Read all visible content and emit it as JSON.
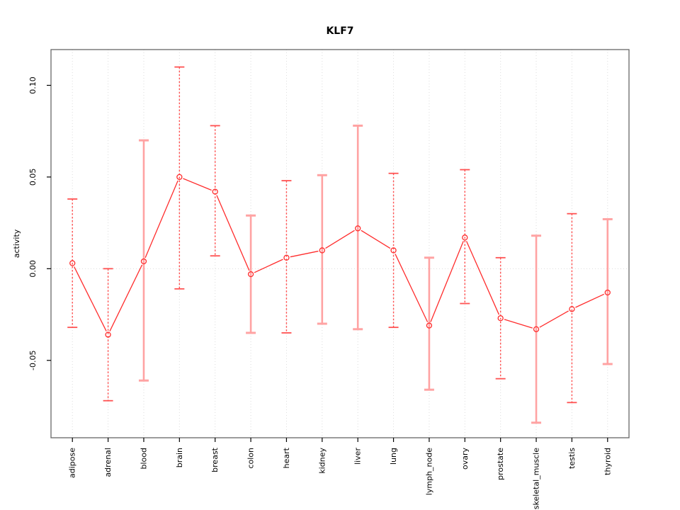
{
  "title": "KLF7",
  "chart_data": {
    "type": "line",
    "title": "KLF7",
    "xlabel": "",
    "ylabel": "activity",
    "legend": "none",
    "grid": "vertical-dotted-gridlines-and-dotted-zero-line",
    "categories": [
      "adipose",
      "adrenal",
      "blood",
      "brain",
      "breast",
      "colon",
      "heart",
      "kidney",
      "liver",
      "lung",
      "lymph_node",
      "ovary",
      "prostate",
      "skeletal_muscle",
      "testis",
      "thyroid"
    ],
    "series": [
      {
        "name": "activity",
        "values": [
          0.003,
          -0.036,
          0.004,
          0.05,
          0.042,
          -0.003,
          0.006,
          0.01,
          0.022,
          0.01,
          -0.031,
          0.017,
          -0.027,
          -0.033,
          -0.022,
          -0.013
        ],
        "upper": [
          0.038,
          0.0,
          0.07,
          0.11,
          0.078,
          0.029,
          0.048,
          0.051,
          0.078,
          0.052,
          0.006,
          0.054,
          0.006,
          0.018,
          0.03,
          0.027
        ],
        "lower": [
          -0.032,
          -0.072,
          -0.061,
          -0.011,
          0.007,
          -0.035,
          -0.035,
          -0.03,
          -0.033,
          -0.032,
          -0.066,
          -0.019,
          -0.06,
          -0.084,
          -0.073,
          -0.052
        ]
      }
    ],
    "error_bar_styles": [
      "dashed",
      "dashed",
      "solid",
      "dashed",
      "dashed",
      "solid",
      "dashed",
      "solid",
      "solid",
      "dashed",
      "solid",
      "dashed",
      "dashed",
      "solid",
      "dashed",
      "solid"
    ],
    "yticks": [
      0.1,
      0.05,
      0.0,
      -0.05
    ],
    "ytick_labels": [
      "0.10",
      "0.05",
      "0.00",
      "-0.05"
    ],
    "ylim": [
      -0.0922,
      0.1195
    ],
    "zero_line": 0.0,
    "colors": {
      "point": "#ff2d2d",
      "line": "#ff2d2d",
      "error_bar_dashed": "#ff5252",
      "error_bar_solid": "#ffa3a3",
      "grid": "#dcdcdc",
      "box": "#666666",
      "text": "#000000"
    }
  }
}
